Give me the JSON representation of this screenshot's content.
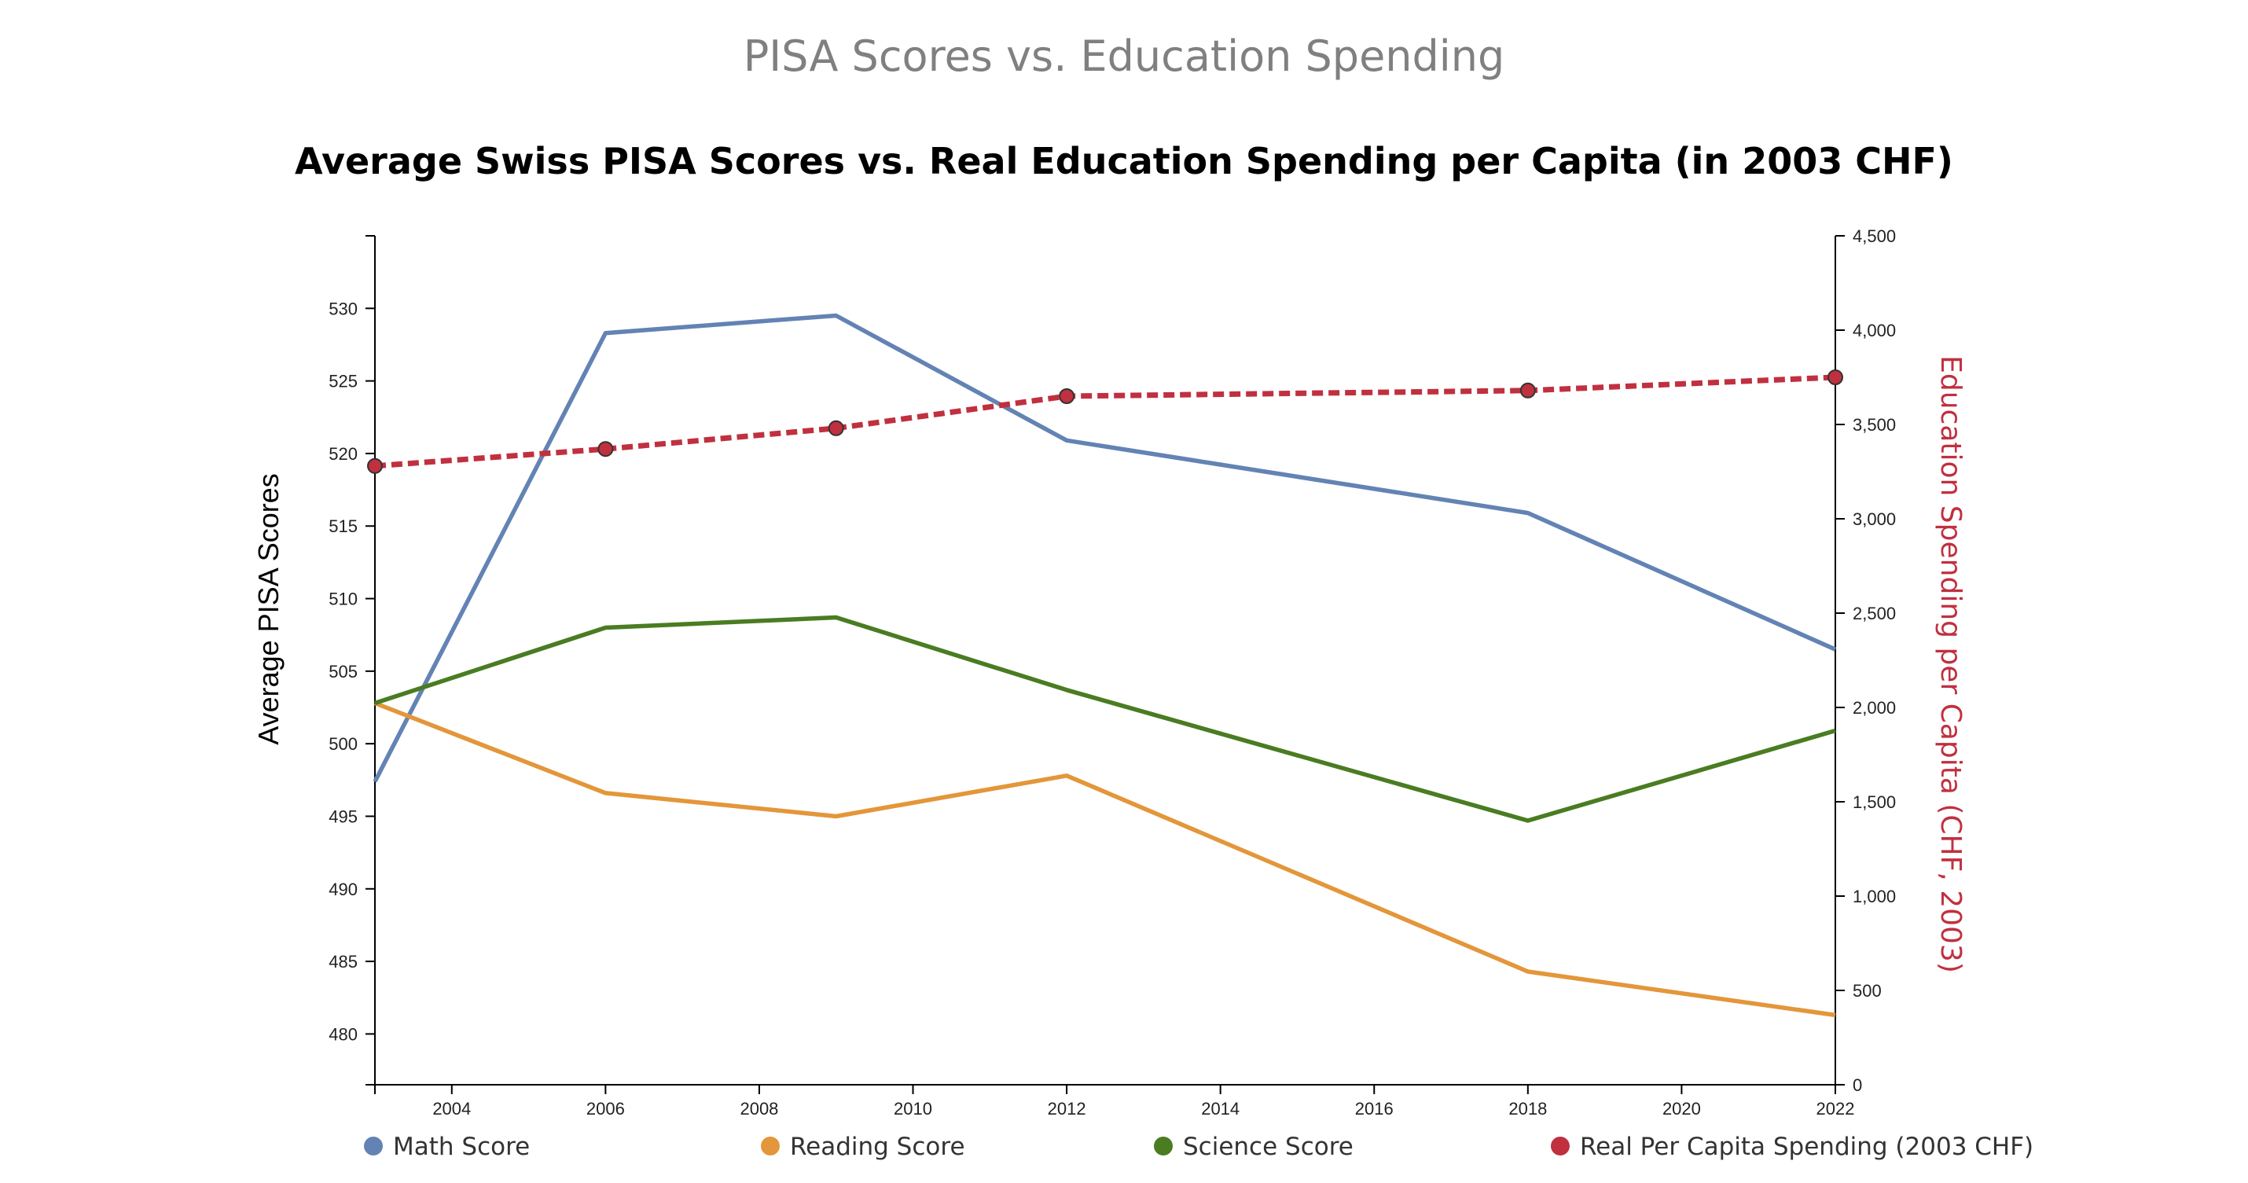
{
  "header": {
    "page_title": "PISA Scores vs. Education Spending"
  },
  "chart_data": {
    "type": "line",
    "title": "Average Swiss PISA Scores vs. Real Education Spending per Capita (in 2003 CHF)",
    "xlabel": "",
    "ylabel": "Average PISA Scores",
    "y2label": "Education Spending per Capita (CHF, 2003)",
    "xlim": [
      2003,
      2022
    ],
    "ylim": [
      476.5,
      535
    ],
    "y2lim": [
      0,
      4500
    ],
    "x_ticks": [
      "2004",
      "2006",
      "2008",
      "2010",
      "2012",
      "2014",
      "2016",
      "2018",
      "2020",
      "2022"
    ],
    "y_ticks": [
      "480",
      "485",
      "490",
      "495",
      "500",
      "505",
      "510",
      "515",
      "520",
      "525",
      "530"
    ],
    "y2_ticks": [
      "0",
      "500",
      "1,000",
      "1,500",
      "2,000",
      "2,500",
      "3,000",
      "3,500",
      "4,000",
      "4,500"
    ],
    "x": [
      2003,
      2006,
      2009,
      2012,
      2018,
      2022
    ],
    "series": [
      {
        "name": "Math Score",
        "axis": "left",
        "color": "#6383b4",
        "style": "solid",
        "values": [
          497.4,
          528.3,
          529.5,
          520.9,
          515.9,
          506.5
        ]
      },
      {
        "name": "Reading Score",
        "axis": "left",
        "color": "#e3963a",
        "style": "solid",
        "values": [
          502.8,
          496.6,
          495.0,
          497.8,
          484.3,
          481.3
        ]
      },
      {
        "name": "Science Score",
        "axis": "left",
        "color": "#4a7c22",
        "style": "solid",
        "values": [
          502.8,
          508.0,
          508.7,
          503.7,
          494.7,
          500.9
        ]
      },
      {
        "name": "Real Per Capita Spending (2003 CHF)",
        "axis": "right",
        "color": "#c0303f",
        "style": "dashed",
        "markers": true,
        "values": [
          3280,
          3370,
          3480,
          3650,
          3680,
          3750
        ]
      }
    ],
    "legend_position": "bottom",
    "grid": false
  }
}
